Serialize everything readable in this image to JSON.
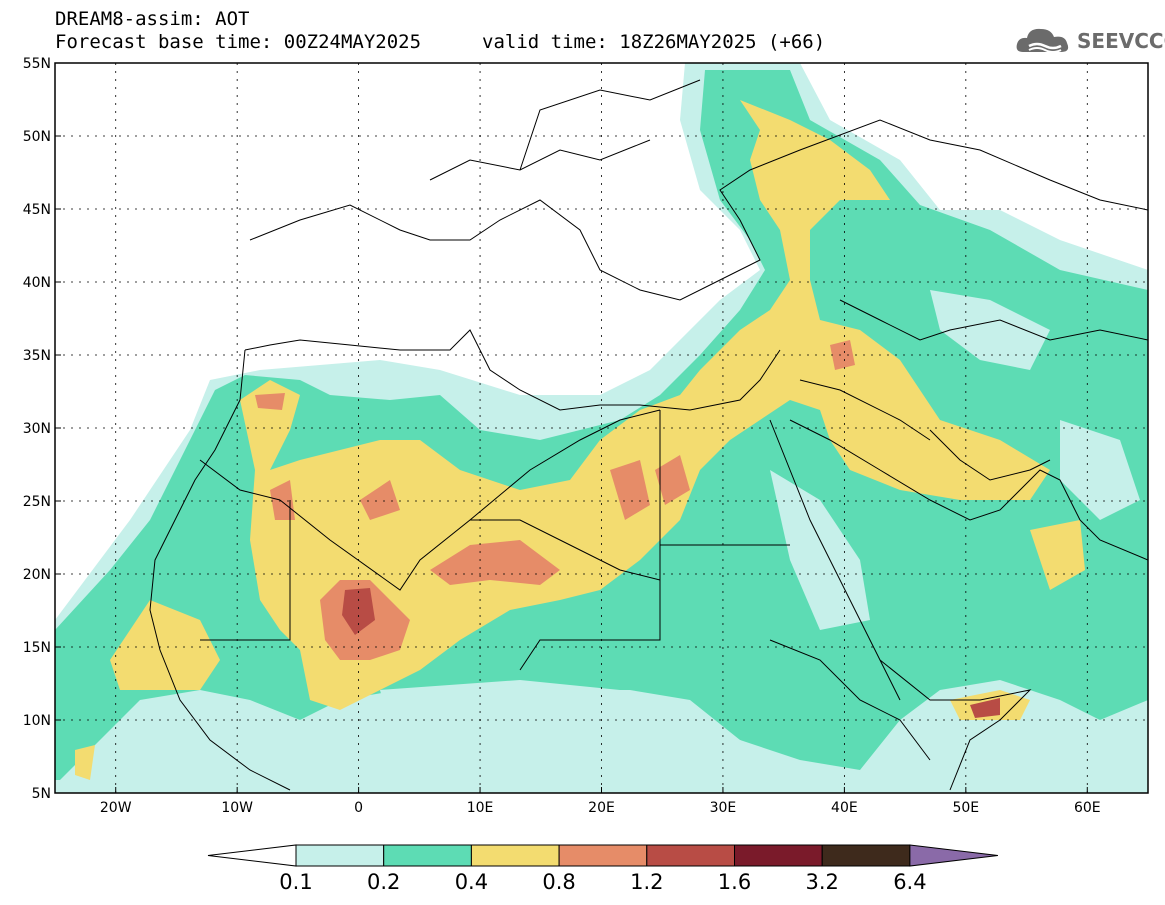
{
  "header": {
    "line1": "DREAM8-assim: AOT",
    "line2": "Forecast base time: 00Z24MAY2025",
    "line3": "valid time: 18Z26MAY2025 (+66)"
  },
  "logo": {
    "text": "SEEVCCC",
    "icon": "cloud-icon"
  },
  "axes": {
    "lat_ticks": [
      "55N",
      "50N",
      "45N",
      "40N",
      "35N",
      "30N",
      "25N",
      "20N",
      "15N",
      "10N",
      "5N"
    ],
    "lon_ticks": [
      "20W",
      "10W",
      "0",
      "10E",
      "20E",
      "30E",
      "40E",
      "50E",
      "60E"
    ],
    "lon_range": [
      -25,
      65
    ],
    "lat_range": [
      5,
      55
    ]
  },
  "colorbar": {
    "labels": [
      "0.1",
      "0.2",
      "0.4",
      "0.8",
      "1.2",
      "1.6",
      "3.2",
      "6.4"
    ],
    "colors": [
      "#c6f0ea",
      "#5ddcb4",
      "#f3dc70",
      "#e68c68",
      "#b84c45",
      "#7a1a2a",
      "#3e2a1c",
      "#8a6aa8"
    ]
  },
  "colors": {
    "ocean": "#ffffff",
    "land_low": "#c6f0ea",
    "level1": "#5ddcb4",
    "level2": "#f3dc70",
    "level3": "#e68c68",
    "level4": "#b84c45",
    "border": "#000000"
  }
}
